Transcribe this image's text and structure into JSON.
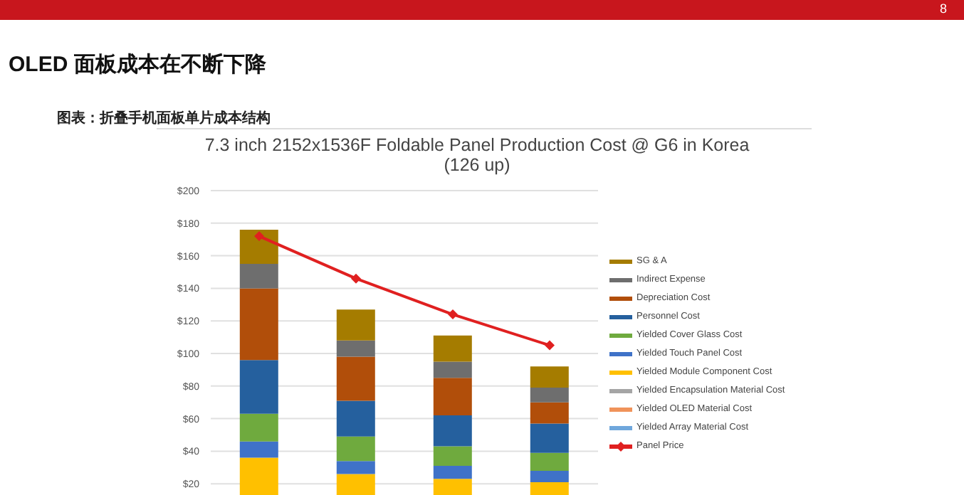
{
  "chart_data": {
    "type": "bar",
    "title": "OLED 面板成本在不断下降",
    "subtitle": "图表：折叠手机面板单片成本结构",
    "annotations": [
      "7.3 inch 2152x1536F Foldable Panel Production Cost @ G6  in Korea\n(126 up)",
      "8"
    ],
    "categories": [
      null,
      null,
      null,
      null
    ],
    "stacked": true,
    "series": [
      {
        "name": "Yielded Array Material Cost",
        "color": "#6fa7dc",
        "values": [
          null,
          null,
          null,
          null
        ]
      },
      {
        "name": "Yielded OLED Material Cost",
        "color": "#f0935a",
        "values": [
          null,
          null,
          null,
          null
        ]
      },
      {
        "name": "Yielded Encapsulation Material Cost",
        "color": "#a5a5a5",
        "values": [
          null,
          null,
          null,
          null
        ]
      },
      {
        "name": "Yielded Module Component Cost",
        "color": "#ffc000",
        "values": [
          36,
          26,
          23,
          21
        ]
      },
      {
        "name": "Yielded Touch Panel Cost",
        "color": "#3f72c8",
        "values": [
          10,
          8,
          8,
          7
        ]
      },
      {
        "name": "Yielded Cover Glass Cost",
        "color": "#6faa3e",
        "values": [
          17,
          15,
          12,
          11
        ]
      },
      {
        "name": "Personnel Cost",
        "color": "#25609e",
        "values": [
          33,
          22,
          19,
          18
        ]
      },
      {
        "name": "Depreciation Cost",
        "color": "#b14e0a",
        "values": [
          44,
          27,
          23,
          13
        ]
      },
      {
        "name": "Indirect Expense",
        "color": "#6e6e6e",
        "values": [
          15,
          10,
          10,
          9
        ]
      },
      {
        "name": "SG & A",
        "color": "#a57c00",
        "values": [
          21,
          19,
          16,
          13
        ]
      },
      {
        "name": "Panel Price",
        "type": "line",
        "color": "#e02020",
        "values": [
          172,
          146,
          124,
          105
        ]
      }
    ],
    "ylim": [
      0,
      200
    ],
    "yticks": [
      {
        "value": 20,
        "label": "$20"
      },
      {
        "value": 40,
        "label": "$40"
      },
      {
        "value": 60,
        "label": "$60"
      },
      {
        "value": 80,
        "label": "$80"
      },
      {
        "value": 100,
        "label": "$100"
      },
      {
        "value": 120,
        "label": "$120"
      },
      {
        "value": 140,
        "label": "$140"
      },
      {
        "value": 160,
        "label": "$160"
      },
      {
        "value": 180,
        "label": "$180"
      },
      {
        "value": 200,
        "label": "$200"
      }
    ],
    "grid": "y",
    "legend": "right",
    "marker": "diamond",
    "tick_labels": "y"
  }
}
